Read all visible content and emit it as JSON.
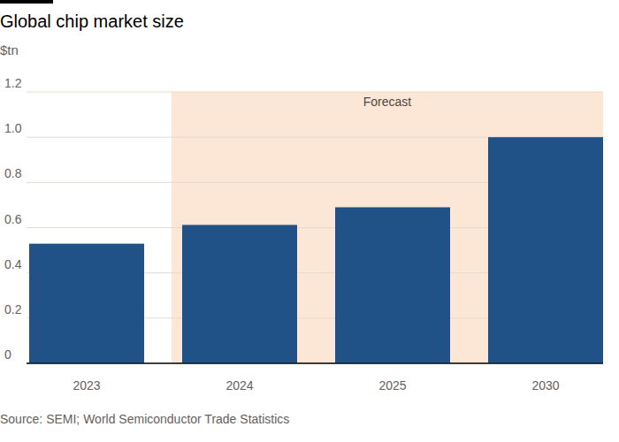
{
  "chart_data": {
    "type": "bar",
    "title": "Global chip market size",
    "subtitle": "$tn",
    "categories": [
      "2023",
      "2024",
      "2025",
      "2030"
    ],
    "values": [
      0.529,
      0.612,
      0.69,
      1.0
    ],
    "color": "#205288",
    "ylim": [
      0,
      1.2
    ],
    "yticks": [
      0,
      0.2,
      0.4,
      0.6,
      0.8,
      {
        "value": 1,
        "label": "1.0"
      },
      1.2
    ],
    "grid": true,
    "annotations": [
      {
        "text": "Forecast",
        "start": "2024",
        "end": "2030"
      }
    ],
    "source": "Source: SEMI; World Semiconductor Trade Statistics"
  }
}
